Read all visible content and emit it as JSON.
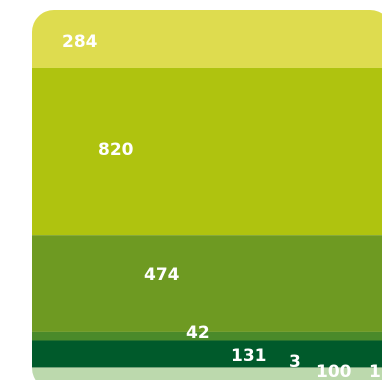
{
  "chart_data": {
    "type": "bar",
    "orientation": "stacked-horizontal-bands",
    "categories": [
      "284",
      "820",
      "474",
      "42",
      "131",
      "3",
      "100",
      "1"
    ],
    "values": [
      284,
      820,
      474,
      42,
      131,
      3,
      100,
      1
    ],
    "colors": [
      "#dedc4f",
      "#afc30f",
      "#6e9a22",
      "#4a8a2a",
      "#005a2b",
      "#2c6e36",
      "#bcd9ad",
      "#bcd9ad"
    ],
    "data_labels": [
      "284",
      "820",
      "474",
      "42",
      "131",
      "3",
      "100",
      "1"
    ],
    "title": "",
    "xlabel": "",
    "ylabel": "",
    "legend": "none",
    "grid": false
  }
}
